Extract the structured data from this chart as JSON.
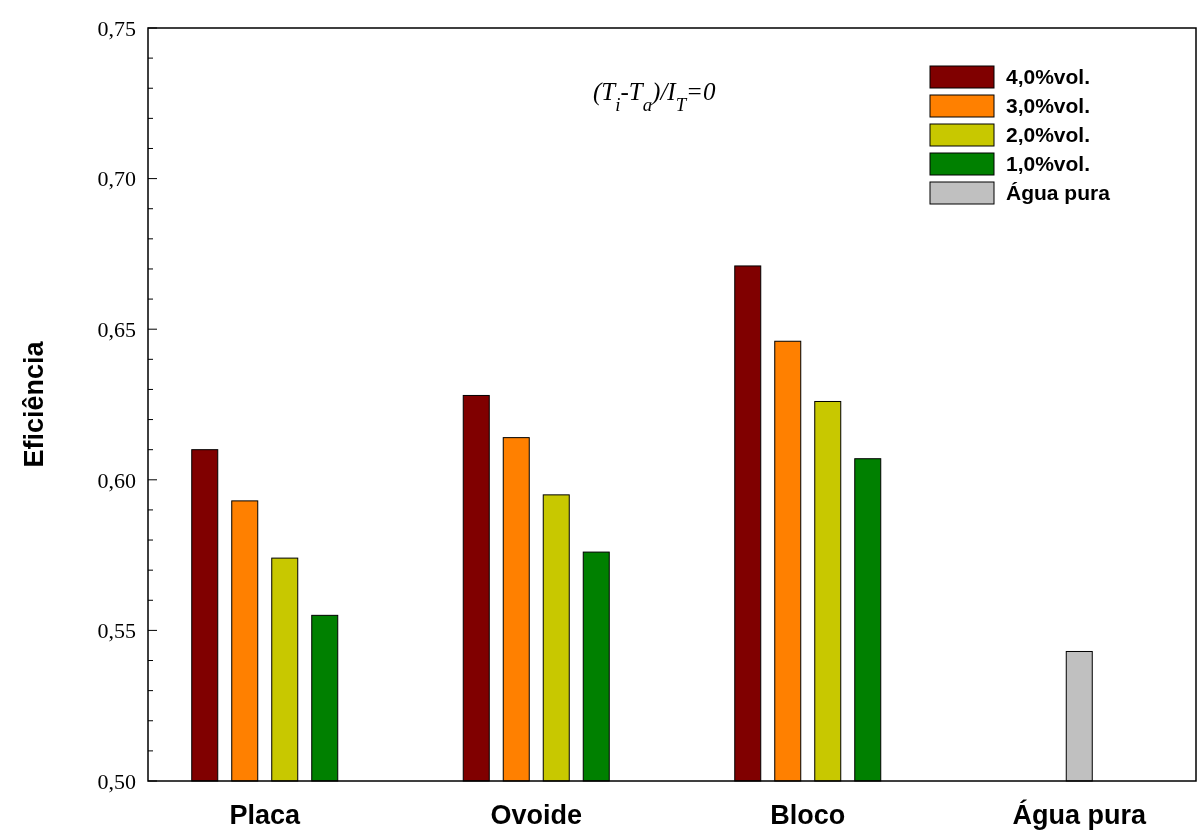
{
  "chart_data": {
    "type": "bar",
    "ylabel": "Eficiência",
    "categories": [
      "Placa",
      "Ovoide",
      "Bloco",
      "Água pura"
    ],
    "series": [
      {
        "name": "4,0%vol.",
        "color": "#800000",
        "values": [
          0.61,
          0.628,
          0.671,
          null
        ]
      },
      {
        "name": "3,0%vol.",
        "color": "#ff8000",
        "values": [
          0.593,
          0.614,
          0.646,
          null
        ]
      },
      {
        "name": "2,0%vol.",
        "color": "#c8c800",
        "values": [
          0.574,
          0.595,
          0.626,
          null
        ]
      },
      {
        "name": "1,0%vol.",
        "color": "#008000",
        "values": [
          0.555,
          0.576,
          0.607,
          null
        ]
      },
      {
        "name": "Água pura",
        "color": "#c0c0c0",
        "values": [
          null,
          null,
          null,
          0.543
        ]
      }
    ],
    "ylim": [
      0.5,
      0.75
    ],
    "yticks": [
      {
        "value": 0.5,
        "label": "0,50"
      },
      {
        "value": 0.51,
        "label": null
      },
      {
        "value": 0.52,
        "label": null
      },
      {
        "value": 0.53,
        "label": null
      },
      {
        "value": 0.54,
        "label": null
      },
      {
        "value": 0.55,
        "label": "0,55"
      },
      {
        "value": 0.56,
        "label": null
      },
      {
        "value": 0.57,
        "label": null
      },
      {
        "value": 0.58,
        "label": null
      },
      {
        "value": 0.59,
        "label": null
      },
      {
        "value": 0.6,
        "label": "0,60"
      },
      {
        "value": 0.61,
        "label": null
      },
      {
        "value": 0.62,
        "label": null
      },
      {
        "value": 0.63,
        "label": null
      },
      {
        "value": 0.64,
        "label": null
      },
      {
        "value": 0.65,
        "label": "0,65"
      },
      {
        "value": 0.66,
        "label": null
      },
      {
        "value": 0.67,
        "label": null
      },
      {
        "value": 0.68,
        "label": null
      },
      {
        "value": 0.69,
        "label": null
      },
      {
        "value": 0.7,
        "label": "0,70"
      },
      {
        "value": 0.71,
        "label": null
      },
      {
        "value": 0.72,
        "label": null
      },
      {
        "value": 0.73,
        "label": null
      },
      {
        "value": 0.74,
        "label": null
      },
      {
        "value": 0.75,
        "label": "0,75"
      }
    ],
    "annotations": [
      "(T$_{i}$-T$_{a}$)/I$_{T}$=0"
    ],
    "legend": "top right",
    "grid": false
  }
}
